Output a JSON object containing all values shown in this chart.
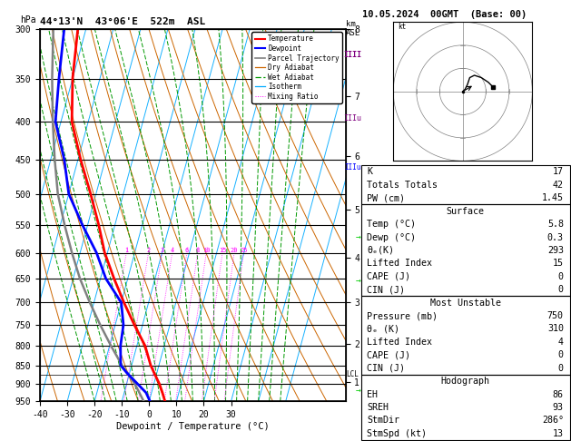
{
  "title_left": "44°13'N  43°06'E  522m  ASL",
  "title_right": "10.05.2024  00GMT  (Base: 00)",
  "xlabel": "Dewpoint / Temperature (°C)",
  "p_levels": [
    300,
    350,
    400,
    450,
    500,
    550,
    600,
    650,
    700,
    750,
    800,
    850,
    900,
    950
  ],
  "p_min": 300,
  "p_max": 950,
  "t_min": -40,
  "t_max": 35,
  "SKEW": 32,
  "temp_profile_p": [
    950,
    925,
    900,
    870,
    850,
    800,
    750,
    700,
    650,
    600,
    550,
    500,
    450,
    400,
    350,
    300
  ],
  "temp_profile_t": [
    5.8,
    4.0,
    2.0,
    -1.0,
    -3.0,
    -7.0,
    -13.0,
    -19.0,
    -25.0,
    -31.0,
    -36.0,
    -42.0,
    -49.0,
    -56.0,
    -60.0,
    -63.0
  ],
  "dewp_profile_p": [
    950,
    925,
    900,
    870,
    850,
    800,
    750,
    700,
    650,
    600,
    550,
    500,
    450,
    400,
    350,
    300
  ],
  "dewp_profile_t": [
    0.3,
    -2.0,
    -6.0,
    -11.0,
    -14.0,
    -16.0,
    -17.0,
    -20.0,
    -28.0,
    -34.0,
    -42.0,
    -50.0,
    -55.0,
    -62.0,
    -65.0,
    -68.0
  ],
  "parcel_p": [
    950,
    900,
    850,
    800,
    750,
    700,
    650,
    600,
    550,
    500,
    450,
    400,
    350,
    300
  ],
  "parcel_t": [
    -2.0,
    -7.0,
    -13.5,
    -19.5,
    -25.5,
    -31.5,
    -37.5,
    -43.0,
    -48.5,
    -54.0,
    -58.5,
    -63.0,
    -67.5,
    -72.0
  ],
  "mixing_ratios": [
    1,
    2,
    3,
    4,
    6,
    8,
    10,
    15,
    20,
    25
  ],
  "km_ticks": [
    1,
    2,
    3,
    4,
    5,
    6,
    7,
    8
  ],
  "km_pressures": [
    896,
    796,
    700,
    610,
    525,
    445,
    370,
    300
  ],
  "lcl_pressure": 875,
  "colors": {
    "temp": "#ff0000",
    "dewp": "#0000ff",
    "parcel": "#808080",
    "dry_adiabat": "#cc6600",
    "wet_adiabat": "#009900",
    "isotherm": "#00aaff",
    "mixing_ratio": "#ff00ff",
    "background": "#ffffff",
    "grid": "#000000"
  },
  "stats": {
    "K": 17,
    "TT": 42,
    "PW": 1.45,
    "surf_temp": 5.8,
    "surf_dewp": 0.3,
    "theta_e": 293,
    "lifted_index": 15,
    "CAPE": 0,
    "CIN": 0,
    "mu_pressure": 750,
    "mu_theta_e": 310,
    "mu_li": 4,
    "mu_CAPE": 0,
    "mu_CIN": 0,
    "EH": 86,
    "SREH": 93,
    "StmDir": "286°",
    "StmSpd": 13
  },
  "legend_entries": [
    "Temperature",
    "Dewpoint",
    "Parcel Trajectory",
    "Dry Adiabat",
    "Wet Adiabat",
    "Isotherm",
    "Mixing Ratio"
  ]
}
